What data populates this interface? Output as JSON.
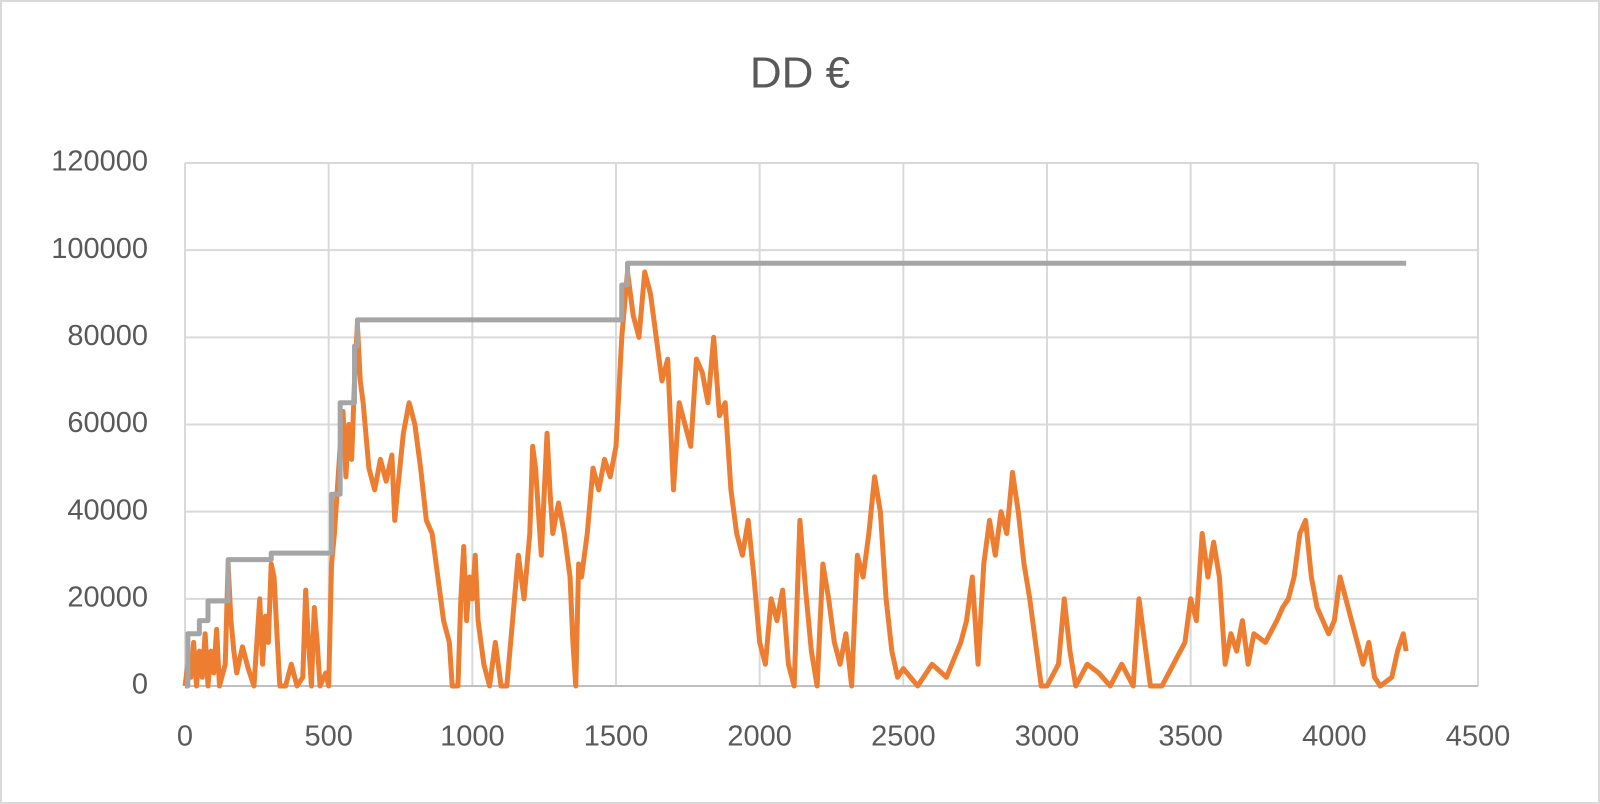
{
  "chart_data": {
    "type": "line",
    "title": "DD €",
    "xlim": [
      0,
      4500
    ],
    "xticks": [
      0,
      500,
      1000,
      1500,
      2000,
      2500,
      3000,
      3500,
      4000,
      4500
    ],
    "ylim": [
      0,
      120000
    ],
    "yticks": [
      0,
      20000,
      40000,
      60000,
      80000,
      100000,
      120000
    ],
    "grid": true,
    "series": [
      {
        "color": "#ed7d31",
        "x": [
          0,
          10,
          20,
          30,
          40,
          50,
          60,
          70,
          80,
          90,
          100,
          110,
          120,
          140,
          150,
          160,
          170,
          180,
          200,
          220,
          240,
          260,
          270,
          280,
          290,
          300,
          310,
          320,
          330,
          350,
          370,
          390,
          410,
          420,
          430,
          440,
          450,
          460,
          470,
          490,
          500,
          510,
          520,
          530,
          540,
          550,
          560,
          570,
          580,
          590,
          600,
          610,
          620,
          640,
          660,
          680,
          700,
          720,
          730,
          740,
          760,
          780,
          800,
          820,
          840,
          860,
          880,
          900,
          920,
          930,
          950,
          960,
          970,
          980,
          990,
          1000,
          1010,
          1020,
          1040,
          1060,
          1080,
          1100,
          1120,
          1140,
          1160,
          1180,
          1200,
          1210,
          1220,
          1240,
          1260,
          1270,
          1280,
          1300,
          1320,
          1340,
          1350,
          1360,
          1370,
          1380,
          1400,
          1420,
          1440,
          1460,
          1480,
          1500,
          1520,
          1540,
          1560,
          1580,
          1600,
          1620,
          1640,
          1660,
          1680,
          1700,
          1720,
          1740,
          1760,
          1780,
          1800,
          1820,
          1840,
          1860,
          1880,
          1900,
          1920,
          1940,
          1960,
          1980,
          2000,
          2020,
          2040,
          2060,
          2080,
          2100,
          2120,
          2140,
          2160,
          2180,
          2200,
          2220,
          2240,
          2260,
          2280,
          2300,
          2320,
          2340,
          2360,
          2380,
          2400,
          2420,
          2440,
          2460,
          2480,
          2500,
          2550,
          2600,
          2650,
          2700,
          2720,
          2740,
          2760,
          2780,
          2800,
          2820,
          2840,
          2860,
          2880,
          2900,
          2920,
          2940,
          2960,
          2980,
          3000,
          3040,
          3060,
          3080,
          3100,
          3140,
          3180,
          3220,
          3260,
          3300,
          3320,
          3340,
          3360,
          3400,
          3440,
          3480,
          3500,
          3520,
          3540,
          3560,
          3580,
          3600,
          3620,
          3640,
          3660,
          3680,
          3700,
          3720,
          3760,
          3800,
          3820,
          3840,
          3860,
          3880,
          3900,
          3920,
          3940,
          3960,
          3980,
          4000,
          4020,
          4040,
          4060,
          4080,
          4100,
          4120,
          4140,
          4160,
          4200,
          4220,
          4240,
          4250
        ],
        "values": [
          0,
          5000,
          2000,
          10000,
          0,
          8000,
          2000,
          12000,
          0,
          8000,
          3000,
          13000,
          0,
          5000,
          28000,
          15000,
          8000,
          3000,
          9000,
          4000,
          0,
          20000,
          5000,
          16000,
          10000,
          28000,
          25000,
          12000,
          0,
          0,
          5000,
          0,
          2000,
          22000,
          10000,
          0,
          18000,
          10000,
          0,
          3000,
          0,
          28000,
          35000,
          45000,
          55000,
          63000,
          48000,
          60000,
          52000,
          70000,
          83000,
          70000,
          65000,
          50000,
          45000,
          52000,
          47000,
          53000,
          38000,
          45000,
          58000,
          65000,
          60000,
          50000,
          38000,
          35000,
          25000,
          15000,
          10000,
          0,
          0,
          20000,
          32000,
          15000,
          25000,
          20000,
          30000,
          15000,
          5000,
          0,
          10000,
          0,
          0,
          15000,
          30000,
          20000,
          35000,
          55000,
          50000,
          30000,
          58000,
          45000,
          35000,
          42000,
          35000,
          25000,
          10000,
          0,
          28000,
          25000,
          35000,
          50000,
          45000,
          52000,
          48000,
          55000,
          80000,
          95000,
          85000,
          80000,
          95000,
          90000,
          80000,
          70000,
          75000,
          45000,
          65000,
          60000,
          55000,
          75000,
          72000,
          65000,
          80000,
          62000,
          65000,
          45000,
          35000,
          30000,
          38000,
          25000,
          10000,
          5000,
          20000,
          15000,
          22000,
          5000,
          0,
          38000,
          22000,
          8000,
          0,
          28000,
          20000,
          10000,
          5000,
          12000,
          0,
          30000,
          25000,
          35000,
          48000,
          40000,
          20000,
          8000,
          2000,
          4000,
          0,
          5000,
          2000,
          10000,
          15000,
          25000,
          5000,
          28000,
          38000,
          30000,
          40000,
          35000,
          49000,
          40000,
          28000,
          20000,
          10000,
          0,
          0,
          5000,
          20000,
          8000,
          0,
          5000,
          3000,
          0,
          5000,
          0,
          20000,
          10000,
          0,
          0,
          5000,
          10000,
          20000,
          15000,
          35000,
          25000,
          33000,
          25000,
          5000,
          12000,
          8000,
          15000,
          5000,
          12000,
          10000,
          15000,
          18000,
          20000,
          25000,
          35000,
          38000,
          25000,
          18000,
          15000,
          12000,
          15000,
          25000,
          20000,
          15000,
          10000,
          5000,
          10000,
          2000,
          0,
          2000,
          8000,
          12000,
          8000
        ]
      },
      {
        "color": "#a5a5a5",
        "x": [
          0,
          10,
          10,
          50,
          50,
          80,
          80,
          150,
          150,
          300,
          300,
          510,
          510,
          540,
          540,
          590,
          590,
          600,
          600,
          1520,
          1520,
          1540,
          1540,
          4250
        ],
        "values": [
          0,
          0,
          12000,
          12000,
          15000,
          15000,
          19500,
          19500,
          29000,
          29000,
          30500,
          30500,
          44000,
          44000,
          65000,
          65000,
          78000,
          78000,
          84000,
          84000,
          92000,
          92000,
          97000,
          97000
        ]
      }
    ]
  }
}
